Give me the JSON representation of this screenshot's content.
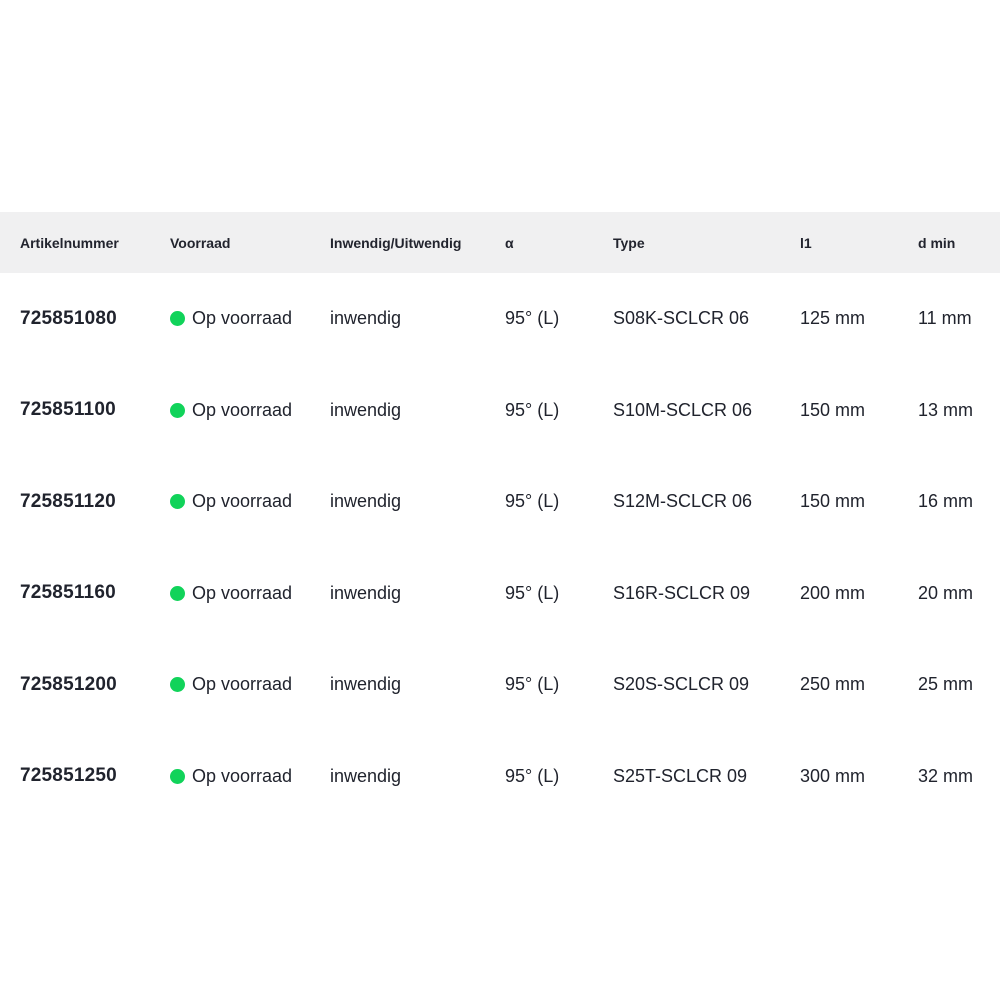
{
  "colors": {
    "header_bg": "#f0f0f1",
    "header_text": "#22242e",
    "body_text": "#20232d",
    "stock_green": "#11d35a"
  },
  "table": {
    "columns": [
      {
        "label": "Artikelnummer"
      },
      {
        "label": "Voorraad"
      },
      {
        "label": "Inwendig/Uitwendig"
      },
      {
        "label": "α"
      },
      {
        "label": "Type"
      },
      {
        "label": "l1"
      },
      {
        "label": "d min"
      }
    ],
    "stock_icon": "in-stock-dot",
    "rows": [
      {
        "artikelnummer": "725851080",
        "voorraad": "Op voorraad",
        "inwendig_uitwendig": "inwendig",
        "alpha": "95° (L)",
        "type": "S08K-SCLCR 06",
        "l1": "125 mm",
        "d_min": "11 mm"
      },
      {
        "artikelnummer": "725851100",
        "voorraad": "Op voorraad",
        "inwendig_uitwendig": "inwendig",
        "alpha": "95° (L)",
        "type": "S10M-SCLCR 06",
        "l1": "150 mm",
        "d_min": "13 mm"
      },
      {
        "artikelnummer": "725851120",
        "voorraad": "Op voorraad",
        "inwendig_uitwendig": "inwendig",
        "alpha": "95° (L)",
        "type": "S12M-SCLCR 06",
        "l1": "150 mm",
        "d_min": "16 mm"
      },
      {
        "artikelnummer": "725851160",
        "voorraad": "Op voorraad",
        "inwendig_uitwendig": "inwendig",
        "alpha": "95° (L)",
        "type": "S16R-SCLCR 09",
        "l1": "200 mm",
        "d_min": "20 mm"
      },
      {
        "artikelnummer": "725851200",
        "voorraad": "Op voorraad",
        "inwendig_uitwendig": "inwendig",
        "alpha": "95° (L)",
        "type": "S20S-SCLCR 09",
        "l1": "250 mm",
        "d_min": "25 mm"
      },
      {
        "artikelnummer": "725851250",
        "voorraad": "Op voorraad",
        "inwendig_uitwendig": "inwendig",
        "alpha": "95° (L)",
        "type": "S25T-SCLCR 09",
        "l1": "300 mm",
        "d_min": "32 mm"
      }
    ]
  }
}
